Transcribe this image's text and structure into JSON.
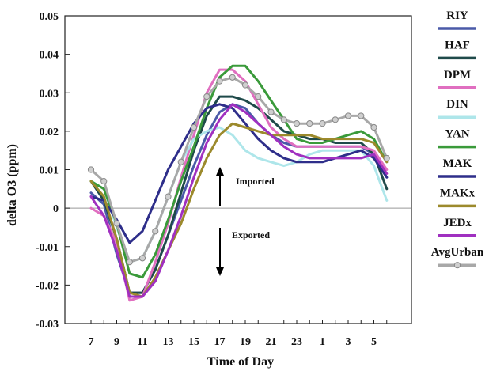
{
  "chart_data": {
    "type": "line",
    "title": "",
    "xlabel": "Time of Day",
    "ylabel": "delta O3 (ppm)",
    "categories": [
      "7",
      "8",
      "9",
      "10",
      "11",
      "12",
      "13",
      "14",
      "15",
      "16",
      "17",
      "18",
      "19",
      "20",
      "21",
      "22",
      "23",
      "24",
      "1",
      "2",
      "3",
      "4",
      "5",
      "6"
    ],
    "x_tick_labels": [
      "7",
      "9",
      "11",
      "13",
      "15",
      "17",
      "19",
      "21",
      "23",
      "1",
      "3",
      "5"
    ],
    "ylim": [
      -0.03,
      0.05
    ],
    "y_ticks": [
      "-0.03",
      "-0.02",
      "-0.01",
      "0",
      "0.01",
      "0.02",
      "0.03",
      "0.04",
      "0.05"
    ],
    "grid": false,
    "legend_position": "right",
    "annotations": [
      {
        "text": "Imported",
        "direction": "up"
      },
      {
        "text": "Exported",
        "direction": "down"
      }
    ],
    "series": [
      {
        "name": "RIY",
        "color": "#4a5aa8",
        "values": [
          0.004,
          0.001,
          -0.012,
          -0.022,
          -0.022,
          -0.016,
          -0.007,
          0.002,
          0.011,
          0.019,
          0.025,
          0.027,
          0.026,
          0.022,
          0.019,
          0.017,
          0.016,
          0.016,
          0.016,
          0.016,
          0.016,
          0.016,
          0.014,
          0.008
        ]
      },
      {
        "name": "HAF",
        "color": "#1f4a4a",
        "values": [
          0.007,
          0.002,
          -0.008,
          -0.022,
          -0.022,
          -0.016,
          -0.007,
          0.004,
          0.015,
          0.024,
          0.029,
          0.029,
          0.028,
          0.026,
          0.023,
          0.02,
          0.019,
          0.018,
          0.018,
          0.017,
          0.017,
          0.017,
          0.014,
          0.005
        ]
      },
      {
        "name": "DPM",
        "color": "#e06fc0",
        "values": [
          0.0,
          -0.002,
          -0.009,
          -0.024,
          -0.023,
          -0.014,
          -0.004,
          0.008,
          0.019,
          0.03,
          0.036,
          0.036,
          0.033,
          0.027,
          0.021,
          0.018,
          0.016,
          0.016,
          0.016,
          0.016,
          0.016,
          0.016,
          0.015,
          0.01
        ]
      },
      {
        "name": "DIN",
        "color": "#aee6ea",
        "values": [
          0.007,
          0.005,
          -0.005,
          -0.014,
          -0.013,
          -0.006,
          0.003,
          0.012,
          0.018,
          0.02,
          0.021,
          0.019,
          0.015,
          0.013,
          0.012,
          0.011,
          0.012,
          0.014,
          0.015,
          0.015,
          0.015,
          0.015,
          0.011,
          0.002
        ]
      },
      {
        "name": "YAN",
        "color": "#3a9a3a",
        "values": [
          0.007,
          0.005,
          -0.004,
          -0.017,
          -0.018,
          -0.012,
          -0.003,
          0.007,
          0.016,
          0.026,
          0.034,
          0.037,
          0.037,
          0.033,
          0.028,
          0.023,
          0.018,
          0.017,
          0.017,
          0.018,
          0.019,
          0.02,
          0.018,
          0.012
        ]
      },
      {
        "name": "MAK",
        "color": "#2e2e8a",
        "values": [
          0.003,
          0.002,
          -0.003,
          -0.009,
          -0.006,
          0.002,
          0.01,
          0.016,
          0.022,
          0.026,
          0.027,
          0.026,
          0.022,
          0.018,
          0.015,
          0.013,
          0.012,
          0.012,
          0.012,
          0.013,
          0.014,
          0.015,
          0.013,
          0.008
        ]
      },
      {
        "name": "MAKx",
        "color": "#9c8a2c",
        "values": [
          0.007,
          0.003,
          -0.008,
          -0.022,
          -0.023,
          -0.018,
          -0.011,
          -0.004,
          0.005,
          0.013,
          0.019,
          0.022,
          0.021,
          0.02,
          0.019,
          0.019,
          0.019,
          0.019,
          0.018,
          0.018,
          0.018,
          0.018,
          0.017,
          0.012
        ]
      },
      {
        "name": "JEDx",
        "color": "#a030c0",
        "values": [
          0.003,
          -0.002,
          -0.011,
          -0.023,
          -0.023,
          -0.019,
          -0.011,
          -0.002,
          0.008,
          0.017,
          0.023,
          0.027,
          0.025,
          0.022,
          0.019,
          0.016,
          0.014,
          0.013,
          0.013,
          0.013,
          0.013,
          0.013,
          0.014,
          0.009
        ]
      },
      {
        "name": "AvgUrban",
        "color": "#a8a8a8",
        "markers": true,
        "values": [
          0.01,
          0.007,
          -0.004,
          -0.014,
          -0.013,
          -0.006,
          0.003,
          0.012,
          0.021,
          0.029,
          0.033,
          0.034,
          0.032,
          0.029,
          0.025,
          0.023,
          0.022,
          0.022,
          0.022,
          0.023,
          0.024,
          0.024,
          0.021,
          0.013
        ]
      }
    ]
  }
}
